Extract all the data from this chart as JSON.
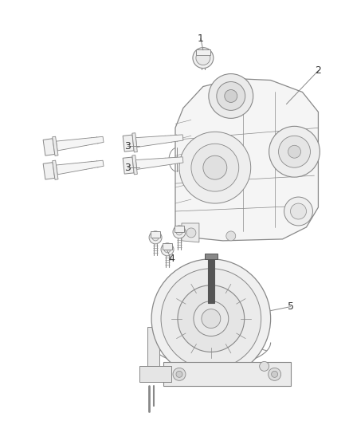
{
  "background_color": "#ffffff",
  "line_color": "#888888",
  "dark_line_color": "#555555",
  "label_color": "#333333",
  "label_fontsize": 9,
  "fig_width": 4.38,
  "fig_height": 5.33,
  "dpi": 100
}
